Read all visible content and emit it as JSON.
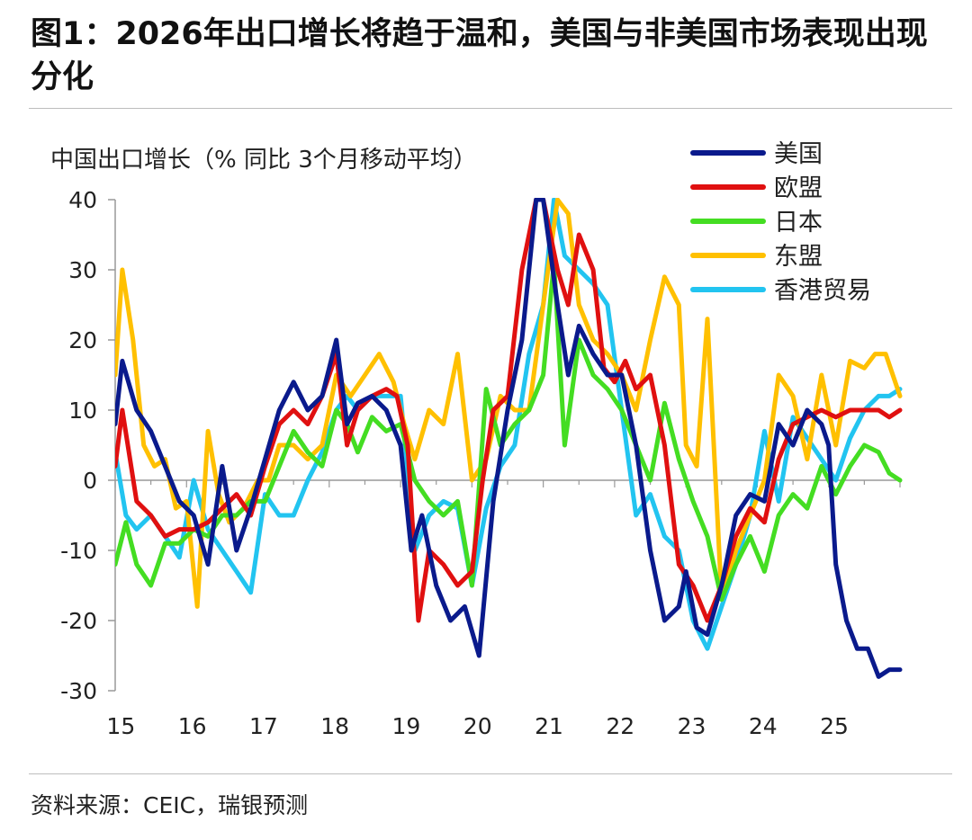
{
  "title": "图1：2026年出口增长将趋于温和，美国与非美国市场表现出现分化",
  "source": "资料来源：CEIC，瑞银预测",
  "chart_data": {
    "type": "line",
    "title": "图1：2026年出口增长将趋于温和，美国与非美国市场表现出现分化",
    "ylabel": "中国出口增长（% 同比 3个月移动平均）",
    "xlabel": "",
    "ylim": [
      -30,
      40
    ],
    "yticks": [
      -30,
      -20,
      -10,
      0,
      10,
      20,
      30,
      40
    ],
    "xlim": [
      2015.0,
      2026.0
    ],
    "xtick_labels": [
      "15",
      "16",
      "17",
      "18",
      "19",
      "20",
      "21",
      "22",
      "23",
      "24",
      "25"
    ],
    "xtick_values": [
      2015,
      2016,
      2017,
      2018,
      2019,
      2020,
      2021,
      2022,
      2023,
      2024,
      2025
    ],
    "grid": false,
    "legend_position": "top-right",
    "series": [
      {
        "name": "美国",
        "color": "#0a1a8c",
        "x": [
          2015.0,
          2015.1,
          2015.3,
          2015.5,
          2015.7,
          2015.9,
          2016.1,
          2016.3,
          2016.5,
          2016.7,
          2016.9,
          2017.1,
          2017.3,
          2017.5,
          2017.7,
          2017.9,
          2018.1,
          2018.25,
          2018.4,
          2018.6,
          2018.8,
          2019.0,
          2019.15,
          2019.3,
          2019.5,
          2019.7,
          2019.9,
          2020.1,
          2020.3,
          2020.5,
          2020.7,
          2020.9,
          2021.0,
          2021.2,
          2021.35,
          2021.5,
          2021.7,
          2021.9,
          2022.1,
          2022.3,
          2022.5,
          2022.7,
          2022.9,
          2023.0,
          2023.15,
          2023.3,
          2023.5,
          2023.7,
          2023.9,
          2024.1,
          2024.3,
          2024.5,
          2024.7,
          2024.9,
          2025.0,
          2025.1,
          2025.25,
          2025.4,
          2025.55,
          2025.7,
          2025.85,
          2026.0
        ],
        "values": [
          8,
          17,
          10,
          7,
          2,
          -3,
          -5,
          -12,
          2,
          -10,
          -4,
          3,
          10,
          14,
          10,
          12,
          20,
          8,
          11,
          12,
          10,
          5,
          -10,
          -5,
          -15,
          -20,
          -18,
          -25,
          -3,
          10,
          20,
          40,
          40,
          25,
          15,
          22,
          18,
          15,
          15,
          5,
          -10,
          -20,
          -18,
          -13,
          -21,
          -22,
          -15,
          -5,
          -2,
          -3,
          8,
          5,
          10,
          8,
          5,
          -12,
          -20,
          -24,
          -24,
          -28,
          -27,
          -27
        ]
      },
      {
        "name": "欧盟",
        "color": "#e01010",
        "x": [
          2015.0,
          2015.1,
          2015.3,
          2015.5,
          2015.7,
          2015.9,
          2016.1,
          2016.3,
          2016.5,
          2016.7,
          2016.9,
          2017.1,
          2017.3,
          2017.5,
          2017.7,
          2017.9,
          2018.1,
          2018.25,
          2018.4,
          2018.6,
          2018.8,
          2018.95,
          2019.1,
          2019.25,
          2019.4,
          2019.6,
          2019.8,
          2020.0,
          2020.15,
          2020.3,
          2020.5,
          2020.7,
          2020.9,
          2021.0,
          2021.2,
          2021.35,
          2021.5,
          2021.7,
          2021.85,
          2022.0,
          2022.15,
          2022.3,
          2022.5,
          2022.7,
          2022.9,
          2023.1,
          2023.3,
          2023.5,
          2023.7,
          2023.9,
          2024.1,
          2024.3,
          2024.5,
          2024.7,
          2024.9,
          2025.1,
          2025.3,
          2025.5,
          2025.7,
          2025.85,
          2026.0
        ],
        "values": [
          2,
          10,
          -3,
          -5,
          -8,
          -7,
          -7,
          -6,
          -4,
          -2,
          -5,
          2,
          8,
          10,
          8,
          12,
          18,
          5,
          10,
          12,
          13,
          12,
          5,
          -20,
          -10,
          -12,
          -15,
          -13,
          0,
          10,
          12,
          30,
          40,
          40,
          30,
          25,
          35,
          30,
          16,
          14,
          17,
          13,
          15,
          5,
          -12,
          -15,
          -20,
          -15,
          -8,
          -4,
          -6,
          3,
          8,
          9,
          10,
          9,
          10,
          10,
          10,
          9,
          10
        ]
      },
      {
        "name": "日本",
        "color": "#44dd22",
        "x": [
          2015.0,
          2015.15,
          2015.3,
          2015.5,
          2015.7,
          2015.9,
          2016.1,
          2016.3,
          2016.5,
          2016.7,
          2016.9,
          2017.1,
          2017.3,
          2017.5,
          2017.7,
          2017.9,
          2018.1,
          2018.25,
          2018.4,
          2018.6,
          2018.8,
          2019.0,
          2019.2,
          2019.4,
          2019.6,
          2019.8,
          2020.0,
          2020.2,
          2020.4,
          2020.6,
          2020.8,
          2021.0,
          2021.15,
          2021.3,
          2021.5,
          2021.7,
          2021.9,
          2022.1,
          2022.3,
          2022.5,
          2022.7,
          2022.9,
          2023.1,
          2023.3,
          2023.5,
          2023.7,
          2023.9,
          2024.1,
          2024.3,
          2024.5,
          2024.7,
          2024.9,
          2025.1,
          2025.3,
          2025.5,
          2025.7,
          2025.85,
          2026.0
        ],
        "values": [
          -12,
          -6,
          -12,
          -15,
          -9,
          -9,
          -7,
          -8,
          -5,
          -5,
          -3,
          -3,
          2,
          7,
          4,
          2,
          10,
          8,
          4,
          9,
          7,
          8,
          0,
          -3,
          -5,
          -3,
          -15,
          13,
          5,
          8,
          10,
          15,
          31,
          5,
          20,
          15,
          13,
          10,
          5,
          0,
          11,
          3,
          -3,
          -8,
          -17,
          -12,
          -8,
          -13,
          -5,
          -2,
          -4,
          2,
          -2,
          2,
          5,
          4,
          1,
          0
        ]
      },
      {
        "name": "东盟",
        "color": "#ffc000",
        "x": [
          2015.0,
          2015.1,
          2015.25,
          2015.4,
          2015.55,
          2015.7,
          2015.85,
          2016.0,
          2016.15,
          2016.3,
          2016.45,
          2016.6,
          2016.8,
          2017.0,
          2017.15,
          2017.3,
          2017.5,
          2017.7,
          2017.9,
          2018.1,
          2018.3,
          2018.5,
          2018.7,
          2018.9,
          2019.05,
          2019.2,
          2019.4,
          2019.6,
          2019.8,
          2020.0,
          2020.2,
          2020.4,
          2020.6,
          2020.8,
          2021.0,
          2021.2,
          2021.35,
          2021.5,
          2021.7,
          2021.9,
          2022.1,
          2022.3,
          2022.5,
          2022.7,
          2022.9,
          2023.0,
          2023.15,
          2023.3,
          2023.5,
          2023.7,
          2023.9,
          2024.1,
          2024.3,
          2024.5,
          2024.7,
          2024.9,
          2025.1,
          2025.3,
          2025.5,
          2025.65,
          2025.8,
          2026.0
        ],
        "values": [
          15,
          30,
          20,
          5,
          2,
          3,
          -4,
          -3,
          -18,
          7,
          -2,
          -6,
          -4,
          0,
          0,
          5,
          5,
          3,
          5,
          15,
          12,
          15,
          18,
          14,
          8,
          3,
          10,
          8,
          18,
          0,
          3,
          12,
          10,
          10,
          25,
          40,
          38,
          25,
          20,
          18,
          15,
          10,
          20,
          29,
          25,
          5,
          2,
          23,
          -17,
          -10,
          -5,
          0,
          15,
          12,
          3,
          15,
          5,
          17,
          16,
          18,
          18,
          12
        ]
      },
      {
        "name": "香港贸易",
        "color": "#22c4f0",
        "x": [
          2015.0,
          2015.15,
          2015.3,
          2015.5,
          2015.7,
          2015.9,
          2016.1,
          2016.3,
          2016.5,
          2016.7,
          2016.9,
          2017.1,
          2017.3,
          2017.5,
          2017.7,
          2017.9,
          2018.1,
          2018.25,
          2018.4,
          2018.6,
          2018.8,
          2019.0,
          2019.2,
          2019.4,
          2019.6,
          2019.8,
          2020.0,
          2020.2,
          2020.4,
          2020.6,
          2020.8,
          2021.0,
          2021.15,
          2021.3,
          2021.5,
          2021.7,
          2021.9,
          2022.1,
          2022.3,
          2022.5,
          2022.7,
          2022.9,
          2023.1,
          2023.3,
          2023.5,
          2023.7,
          2023.9,
          2024.1,
          2024.3,
          2024.5,
          2024.7,
          2024.9,
          2025.1,
          2025.3,
          2025.5,
          2025.7,
          2025.85,
          2026.0
        ],
        "values": [
          4,
          -5,
          -7,
          -5,
          -8,
          -11,
          0,
          -7,
          -10,
          -13,
          -16,
          -2,
          -5,
          -5,
          0,
          4,
          10,
          12,
          10,
          12,
          12,
          12,
          -10,
          -5,
          -3,
          -4,
          -15,
          -4,
          2,
          5,
          18,
          25,
          40,
          32,
          30,
          28,
          25,
          10,
          -5,
          -2,
          -8,
          -10,
          -20,
          -24,
          -18,
          -12,
          -5,
          7,
          -3,
          9,
          6,
          3,
          0,
          6,
          10,
          12,
          12,
          13
        ]
      }
    ]
  }
}
